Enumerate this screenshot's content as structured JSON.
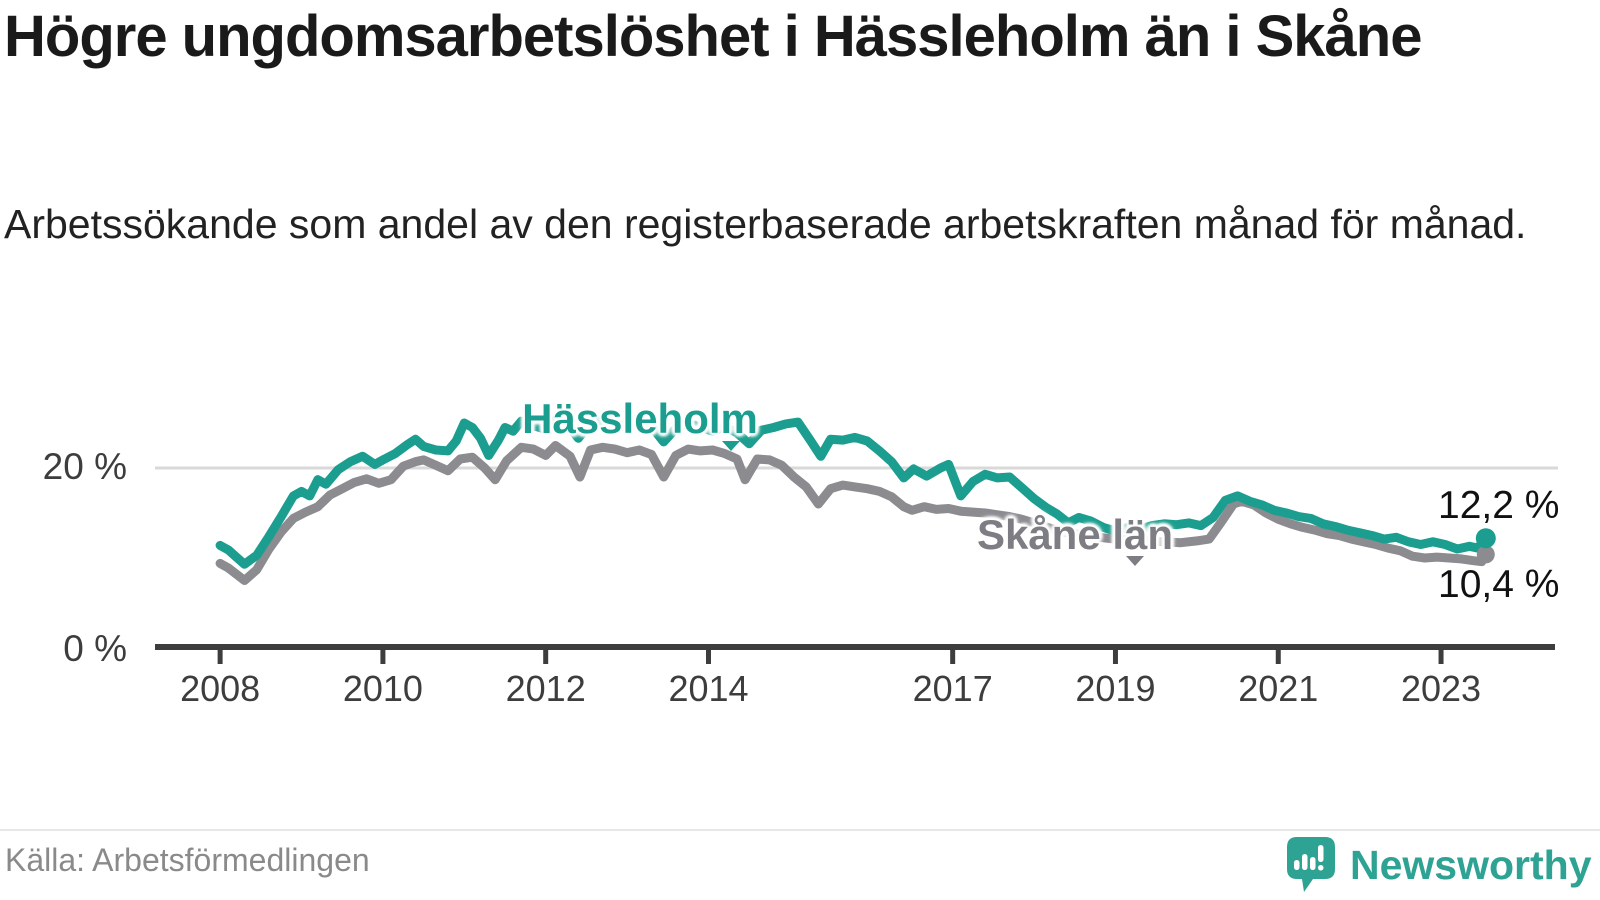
{
  "header": {
    "title": "Högre ungdomsarbetslöshet i Hässleholm än i Skåne",
    "subtitle": "Arbetssökande som andel av den registerbaserade arbetskraften månad för månad."
  },
  "footer": {
    "source": "Källa: Arbetsförmedlingen",
    "brand": "Newsworthy"
  },
  "colors": {
    "hassleholm": "#1b9e8f",
    "skane": "#8b8b90",
    "skane_label_text": "#7d7d84",
    "axis": "#3d3d3d",
    "grid": "#d9d9d9",
    "title_text": "#1a1a1a",
    "source_text": "#8a8a8a",
    "brand_teal": "#2ea293"
  },
  "chart_data": {
    "type": "line",
    "title": "Högre ungdomsarbetslöshet i Hässleholm än i Skåne",
    "subtitle": "Arbetssökande som andel av den registerbaserade arbetskraften månad för månad.",
    "unit": "%",
    "x_axis": {
      "min": 2007.2,
      "max": 2024.4,
      "ticks": [
        2008,
        2010,
        2012,
        2014,
        2017,
        2019,
        2021,
        2023
      ]
    },
    "y_axis": {
      "min": 0,
      "max": 29,
      "gridline_value": 20,
      "tick_labels": {
        "y20": "20 %",
        "y0": "0 %"
      }
    },
    "legend_position": "inline-labels-on-lines",
    "grid": "single-horizontal-line-at-20",
    "series": [
      {
        "name": "Hässleholm",
        "color": "#1b9e8f",
        "end_label": "12,2 %",
        "end_value": 12.2,
        "points": [
          [
            2008.0,
            11.4
          ],
          [
            2008.1,
            10.9
          ],
          [
            2008.2,
            10.1
          ],
          [
            2008.3,
            9.3
          ],
          [
            2008.45,
            10.3
          ],
          [
            2008.6,
            12.4
          ],
          [
            2008.75,
            14.6
          ],
          [
            2008.9,
            16.9
          ],
          [
            2009.0,
            17.4
          ],
          [
            2009.1,
            16.9
          ],
          [
            2009.2,
            18.7
          ],
          [
            2009.3,
            18.2
          ],
          [
            2009.45,
            19.8
          ],
          [
            2009.6,
            20.7
          ],
          [
            2009.75,
            21.3
          ],
          [
            2009.9,
            20.4
          ],
          [
            2010.0,
            20.9
          ],
          [
            2010.15,
            21.6
          ],
          [
            2010.3,
            22.6
          ],
          [
            2010.4,
            23.2
          ],
          [
            2010.5,
            22.4
          ],
          [
            2010.65,
            22.0
          ],
          [
            2010.8,
            21.9
          ],
          [
            2010.9,
            23.0
          ],
          [
            2011.0,
            25.0
          ],
          [
            2011.1,
            24.5
          ],
          [
            2011.2,
            23.3
          ],
          [
            2011.3,
            21.4
          ],
          [
            2011.42,
            23.1
          ],
          [
            2011.5,
            24.5
          ],
          [
            2011.6,
            24.1
          ],
          [
            2011.7,
            25.2
          ],
          [
            2011.85,
            24.7
          ],
          [
            2012.0,
            24.3
          ],
          [
            2012.12,
            25.4
          ],
          [
            2012.25,
            25.1
          ],
          [
            2012.4,
            23.3
          ],
          [
            2012.55,
            25.0
          ],
          [
            2012.7,
            25.3
          ],
          [
            2012.85,
            24.9
          ],
          [
            2013.0,
            24.5
          ],
          [
            2013.15,
            25.0
          ],
          [
            2013.3,
            24.6
          ],
          [
            2013.45,
            22.9
          ],
          [
            2013.6,
            24.4
          ],
          [
            2013.75,
            25.0
          ],
          [
            2013.9,
            24.5
          ],
          [
            2014.05,
            24.1
          ],
          [
            2014.2,
            24.6
          ],
          [
            2014.35,
            23.9
          ],
          [
            2014.5,
            22.7
          ],
          [
            2014.65,
            24.2
          ],
          [
            2014.8,
            24.5
          ],
          [
            2014.95,
            24.9
          ],
          [
            2015.1,
            25.1
          ],
          [
            2015.25,
            23.1
          ],
          [
            2015.38,
            21.3
          ],
          [
            2015.5,
            23.2
          ],
          [
            2015.65,
            23.1
          ],
          [
            2015.8,
            23.4
          ],
          [
            2015.95,
            23.0
          ],
          [
            2016.1,
            21.9
          ],
          [
            2016.25,
            20.7
          ],
          [
            2016.4,
            18.9
          ],
          [
            2016.52,
            19.9
          ],
          [
            2016.68,
            19.1
          ],
          [
            2016.85,
            20.0
          ],
          [
            2016.95,
            20.4
          ],
          [
            2017.1,
            16.9
          ],
          [
            2017.25,
            18.5
          ],
          [
            2017.4,
            19.3
          ],
          [
            2017.55,
            18.9
          ],
          [
            2017.7,
            19.0
          ],
          [
            2017.85,
            17.8
          ],
          [
            2018.0,
            16.6
          ],
          [
            2018.15,
            15.6
          ],
          [
            2018.28,
            14.9
          ],
          [
            2018.42,
            13.9
          ],
          [
            2018.55,
            14.5
          ],
          [
            2018.7,
            14.1
          ],
          [
            2018.85,
            13.4
          ],
          [
            2019.0,
            13.0
          ],
          [
            2019.15,
            13.4
          ],
          [
            2019.3,
            13.2
          ],
          [
            2019.45,
            13.6
          ],
          [
            2019.6,
            13.8
          ],
          [
            2019.75,
            13.7
          ],
          [
            2019.9,
            13.9
          ],
          [
            2020.05,
            13.6
          ],
          [
            2020.2,
            14.5
          ],
          [
            2020.35,
            16.4
          ],
          [
            2020.5,
            16.9
          ],
          [
            2020.65,
            16.3
          ],
          [
            2020.8,
            15.9
          ],
          [
            2020.95,
            15.3
          ],
          [
            2021.1,
            15.0
          ],
          [
            2021.25,
            14.6
          ],
          [
            2021.4,
            14.4
          ],
          [
            2021.55,
            13.8
          ],
          [
            2021.7,
            13.5
          ],
          [
            2021.85,
            13.1
          ],
          [
            2022.0,
            12.8
          ],
          [
            2022.15,
            12.5
          ],
          [
            2022.3,
            12.1
          ],
          [
            2022.45,
            12.3
          ],
          [
            2022.6,
            11.8
          ],
          [
            2022.75,
            11.5
          ],
          [
            2022.9,
            11.8
          ],
          [
            2023.05,
            11.5
          ],
          [
            2023.2,
            11.0
          ],
          [
            2023.35,
            11.3
          ],
          [
            2023.45,
            11.1
          ],
          [
            2023.55,
            12.2
          ]
        ]
      },
      {
        "name": "Skåne län",
        "color": "#8b8b90",
        "end_label": "10,4 %",
        "end_value": 10.4,
        "points": [
          [
            2008.0,
            9.4
          ],
          [
            2008.1,
            8.9
          ],
          [
            2008.2,
            8.2
          ],
          [
            2008.3,
            7.5
          ],
          [
            2008.45,
            8.7
          ],
          [
            2008.6,
            11.0
          ],
          [
            2008.75,
            12.9
          ],
          [
            2008.9,
            14.4
          ],
          [
            2009.05,
            15.1
          ],
          [
            2009.2,
            15.7
          ],
          [
            2009.35,
            17.0
          ],
          [
            2009.5,
            17.7
          ],
          [
            2009.65,
            18.4
          ],
          [
            2009.8,
            18.8
          ],
          [
            2009.95,
            18.3
          ],
          [
            2010.1,
            18.7
          ],
          [
            2010.25,
            20.2
          ],
          [
            2010.4,
            20.7
          ],
          [
            2010.5,
            20.9
          ],
          [
            2010.65,
            20.3
          ],
          [
            2010.8,
            19.7
          ],
          [
            2010.95,
            21.0
          ],
          [
            2011.1,
            21.2
          ],
          [
            2011.25,
            20.0
          ],
          [
            2011.38,
            18.7
          ],
          [
            2011.52,
            20.8
          ],
          [
            2011.7,
            22.3
          ],
          [
            2011.85,
            22.1
          ],
          [
            2012.0,
            21.4
          ],
          [
            2012.12,
            22.5
          ],
          [
            2012.3,
            21.3
          ],
          [
            2012.42,
            19.0
          ],
          [
            2012.55,
            22.0
          ],
          [
            2012.7,
            22.3
          ],
          [
            2012.85,
            22.1
          ],
          [
            2013.0,
            21.7
          ],
          [
            2013.15,
            22.0
          ],
          [
            2013.3,
            21.5
          ],
          [
            2013.45,
            19.0
          ],
          [
            2013.6,
            21.4
          ],
          [
            2013.75,
            22.1
          ],
          [
            2013.9,
            21.9
          ],
          [
            2014.05,
            22.0
          ],
          [
            2014.2,
            21.6
          ],
          [
            2014.35,
            21.0
          ],
          [
            2014.45,
            18.7
          ],
          [
            2014.6,
            21.0
          ],
          [
            2014.75,
            20.9
          ],
          [
            2014.9,
            20.3
          ],
          [
            2015.05,
            19.0
          ],
          [
            2015.2,
            17.9
          ],
          [
            2015.35,
            16.0
          ],
          [
            2015.5,
            17.7
          ],
          [
            2015.65,
            18.1
          ],
          [
            2015.8,
            17.9
          ],
          [
            2015.95,
            17.7
          ],
          [
            2016.1,
            17.4
          ],
          [
            2016.25,
            16.8
          ],
          [
            2016.4,
            15.7
          ],
          [
            2016.5,
            15.3
          ],
          [
            2016.65,
            15.7
          ],
          [
            2016.8,
            15.4
          ],
          [
            2016.95,
            15.5
          ],
          [
            2017.1,
            15.2
          ],
          [
            2017.25,
            15.1
          ],
          [
            2017.4,
            15.0
          ],
          [
            2017.55,
            14.8
          ],
          [
            2017.7,
            14.6
          ],
          [
            2017.85,
            14.3
          ],
          [
            2018.0,
            13.9
          ],
          [
            2018.2,
            13.3
          ],
          [
            2018.4,
            12.8
          ],
          [
            2018.6,
            12.6
          ],
          [
            2018.8,
            12.3
          ],
          [
            2019.0,
            12.1
          ],
          [
            2019.2,
            12.0
          ],
          [
            2019.4,
            11.9
          ],
          [
            2019.6,
            11.8
          ],
          [
            2019.8,
            11.7
          ],
          [
            2020.0,
            11.9
          ],
          [
            2020.15,
            12.1
          ],
          [
            2020.3,
            14.0
          ],
          [
            2020.45,
            16.0
          ],
          [
            2020.55,
            16.3
          ],
          [
            2020.7,
            15.9
          ],
          [
            2020.85,
            15.0
          ],
          [
            2021.0,
            14.3
          ],
          [
            2021.15,
            13.8
          ],
          [
            2021.3,
            13.4
          ],
          [
            2021.45,
            13.1
          ],
          [
            2021.6,
            12.7
          ],
          [
            2021.75,
            12.5
          ],
          [
            2021.9,
            12.1
          ],
          [
            2022.05,
            11.8
          ],
          [
            2022.2,
            11.5
          ],
          [
            2022.35,
            11.1
          ],
          [
            2022.5,
            10.8
          ],
          [
            2022.65,
            10.2
          ],
          [
            2022.8,
            10.0
          ],
          [
            2022.95,
            10.1
          ],
          [
            2023.1,
            10.0
          ],
          [
            2023.25,
            9.9
          ],
          [
            2023.4,
            9.7
          ],
          [
            2023.5,
            9.6
          ],
          [
            2023.55,
            10.4
          ]
        ]
      }
    ]
  }
}
